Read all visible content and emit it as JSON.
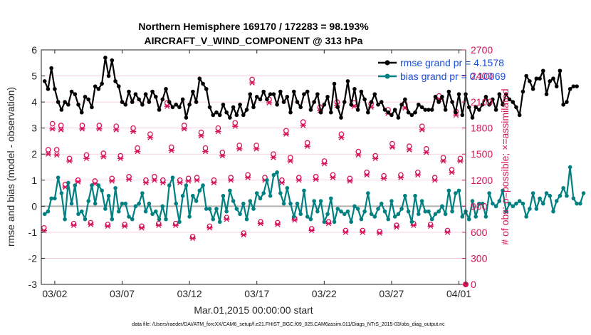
{
  "chart_data": {
    "type": "line",
    "title": "Northern Hemisphere 169170 / 172283 = 98.193%",
    "subtitle": "AIRCRAFT_V_WIND_COMPONENT @ 313 hPa",
    "xlabel": "Mar.01,2015 00:00:00 start",
    "ylabel_left": "rmse and bias (model - observation)",
    "ylabel_right": "# of obs: o=possible; ×=assimilated",
    "footer": "data file: /Users/raeder/DAI/ATM_forcXX/CAM6_setup/f.e21.FHIST_BGC.f09_025.CAM6assim.011/Diags_NTrS_2015-03/obs_diag_output.nc",
    "xlim": [
      0,
      31.5
    ],
    "ylim_left": [
      -3,
      6
    ],
    "ylim_right": [
      0,
      2700
    ],
    "x_ticks": [
      1,
      6,
      11,
      16,
      21,
      26,
      31
    ],
    "x_tick_labels": [
      "03/02",
      "03/07",
      "03/12",
      "03/17",
      "03/22",
      "03/27",
      "04/01"
    ],
    "y_left_ticks": [
      "-3",
      "-2",
      "-1",
      "0",
      "1",
      "2",
      "3",
      "4",
      "5",
      "6"
    ],
    "y_right_ticks": [
      "0",
      "300",
      "600",
      "900",
      "1200",
      "1500",
      "1800",
      "2100",
      "2400",
      "2700"
    ],
    "legend": {
      "position": "top-right",
      "entries": [
        {
          "label": "rmse grand pr = 4.1578",
          "color": "#000000"
        },
        {
          "label": "bias grand pr = 0.10069",
          "color": "#008080"
        }
      ]
    },
    "x_step": 0.25,
    "series": [
      {
        "name": "rmse",
        "color": "#000000",
        "values": [
          4.8,
          4.5,
          5.3,
          4.5,
          4.0,
          3.7,
          4.0,
          3.9,
          4.4,
          4.3,
          3.9,
          3.6,
          4.2,
          4.1,
          3.8,
          4.6,
          4.5,
          4.7,
          5.7,
          5.0,
          5.6,
          4.8,
          4.6,
          4.0,
          3.9,
          4.4,
          4.0,
          4.3,
          4.1,
          3.9,
          4.3,
          4.0,
          4.4,
          4.2,
          3.7,
          4.1,
          4.5,
          4.0,
          3.8,
          3.9,
          3.8,
          4.1,
          3.4,
          3.9,
          4.4,
          4.0,
          4.9,
          4.7,
          4.5,
          3.8,
          3.5,
          3.6,
          3.5,
          3.9,
          3.6,
          3.4,
          3.8,
          3.5,
          3.9,
          3.5,
          3.7,
          4.3,
          3.8,
          4.2,
          4.1,
          4.4,
          4.1,
          4.3,
          4.3,
          3.9,
          4.4,
          4.0,
          4.2,
          3.6,
          4.4,
          4.0,
          3.8,
          4.3,
          4.4,
          3.7,
          4.0,
          4.3,
          3.6,
          3.9,
          4.2,
          3.6,
          4.7,
          3.8,
          3.4,
          4.0,
          4.8,
          3.9,
          4.5,
          3.7,
          4.4,
          4.1,
          3.6,
          4.0,
          4.3,
          3.9,
          4.0,
          3.7,
          3.6,
          3.5,
          3.7,
          3.4,
          3.9,
          4.1,
          3.6,
          3.5,
          3.6,
          3.9,
          3.8,
          3.7,
          3.7,
          3.7,
          4.2,
          4.0,
          4.2,
          3.7,
          4.4,
          4.0,
          3.6,
          4.3,
          3.5,
          4.3,
          3.8,
          3.4,
          3.8,
          3.7,
          3.9,
          4.2,
          3.9,
          4.1,
          3.7,
          4.3,
          3.9,
          4.3,
          4.1,
          4.0,
          3.8,
          3.5,
          4.4,
          5.0,
          4.8,
          4.5,
          4.9,
          4.9,
          5.2,
          4.3,
          4.8,
          4.9,
          4.6,
          5.2,
          3.9,
          4.0,
          4.5,
          4.6,
          4.6
        ]
      },
      {
        "name": "bias",
        "color": "#008080",
        "values": [
          -0.3,
          -0.2,
          0.3,
          0.3,
          1.1,
          0.5,
          -0.5,
          0.9,
          0.1,
          0.8,
          -0.3,
          -0.2,
          -0.5,
          0.2,
          0.8,
          0.1,
          0.8,
          0.6,
          -0.1,
          0.4,
          -0.5,
          0.7,
          -0.2,
          0.1,
          0.1,
          -0.4,
          -0.5,
          0.0,
          0.1,
          0.5,
          -0.2,
          0.1,
          -0.3,
          -0.2,
          -0.5,
          0.0,
          -0.5,
          0.8,
          1.1,
          0.1,
          -0.6,
          0.4,
          0.8,
          -0.4,
          0.4,
          0.2,
          0.6,
          0.8,
          -0.1,
          -0.1,
          -0.5,
          -0.1,
          -0.6,
          0.4,
          -0.2,
          0.6,
          0.2,
          -0.1,
          -0.3,
          0.1,
          -0.5,
          0.2,
          -0.1,
          0.5,
          0.3,
          0.5,
          1.0,
          0.4,
          1.2,
          1.3,
          0.5,
          0.1,
          0.7,
          0.1,
          -0.4,
          0.1,
          -0.3,
          0.6,
          -0.4,
          -0.5,
          0.2,
          -0.2,
          0.2,
          -0.6,
          -0.3,
          0.3,
          -0.6,
          -0.1,
          -0.2,
          -0.3,
          -0.2,
          -0.6,
          0.0,
          -0.1,
          -0.5,
          -0.2,
          0.5,
          -0.3,
          -0.4,
          -0.1,
          0.1,
          -0.2,
          -0.5,
          0.2,
          -0.4,
          -0.3,
          -0.1,
          0.4,
          -0.2,
          -0.6,
          0.4,
          -0.3,
          0.2,
          -0.2,
          -0.2,
          -0.5,
          -0.3,
          -0.2,
          0.0,
          -0.3,
          0.6,
          -0.2,
          0.5,
          0.6,
          -0.4,
          -0.2,
          -0.5,
          0.2,
          -0.4,
          0.1,
          0.1,
          -0.4,
          0.5,
          0.1,
          0.0,
          0.2,
          0.6,
          -0.2,
          0.1,
          0.0,
          0.1,
          0.2,
          0.1,
          -0.4,
          -0.1,
          0.5,
          -0.1,
          0.3,
          0.1,
          0.5,
          0.4,
          -0.2,
          0.2,
          0.4,
          0.7,
          0.4,
          1.5,
          0.3,
          0.1,
          0.1,
          0.5
        ]
      },
      {
        "name": "obs_possible",
        "marker": "o",
        "color": "#d6145c",
        "values": [
          650,
          1550,
          1850,
          1550,
          1830,
          1150,
          1450,
          700,
          1200,
          1830,
          1490,
          710,
          1190,
          1830,
          1510,
          690,
          1220,
          1820,
          1480,
          690,
          1240,
          1800,
          1570,
          670,
          1200,
          1730,
          1240,
          700,
          1200,
          2090,
          1580,
          700,
          1200,
          1830,
          1220,
          550,
          1230,
          1750,
          1570,
          670,
          1200,
          1800,
          1520,
          770,
          1230,
          1860,
          1600,
          590,
          1260,
          2360,
          1600,
          720,
          1230,
          2130,
          1500,
          710,
          1200,
          1770,
          1460,
          760,
          1230,
          1870,
          1630,
          640,
          1240,
          2040,
          1420,
          720,
          1260,
          2100,
          1730,
          620,
          1220,
          2090,
          1530,
          620,
          1290,
          2080,
          1480,
          610,
          1250,
          2010,
          1620,
          680,
          1260,
          2070,
          1590,
          700,
          1290,
          1820,
          1560,
          690,
          1230,
          2170,
          1460,
          620,
          1320,
          1990,
          1450
        ]
      },
      {
        "name": "obs_assimilated",
        "marker": "x",
        "color": "#d6145c",
        "values": [
          620,
          1500,
          1790,
          1490,
          1780,
          1120,
          1420,
          680,
          1180,
          1790,
          1450,
          690,
          1160,
          1790,
          1470,
          670,
          1190,
          1780,
          1450,
          670,
          1210,
          1760,
          1530,
          650,
          1170,
          1690,
          1200,
          680,
          1170,
          2050,
          1540,
          680,
          1170,
          1790,
          1190,
          530,
          1200,
          1710,
          1530,
          650,
          1170,
          1760,
          1480,
          750,
          1200,
          1820,
          1560,
          570,
          1230,
          2320,
          1560,
          700,
          1200,
          2090,
          1460,
          690,
          1170,
          1730,
          1420,
          740,
          1200,
          1830,
          1590,
          620,
          1210,
          2000,
          1390,
          700,
          1230,
          2060,
          1690,
          600,
          1190,
          2050,
          1490,
          600,
          1260,
          2040,
          1450,
          590,
          1220,
          1970,
          1580,
          660,
          1230,
          2030,
          1550,
          680,
          1260,
          1780,
          1520,
          670,
          1200,
          2130,
          1420,
          600,
          1290,
          1950,
          1420
        ]
      }
    ]
  }
}
